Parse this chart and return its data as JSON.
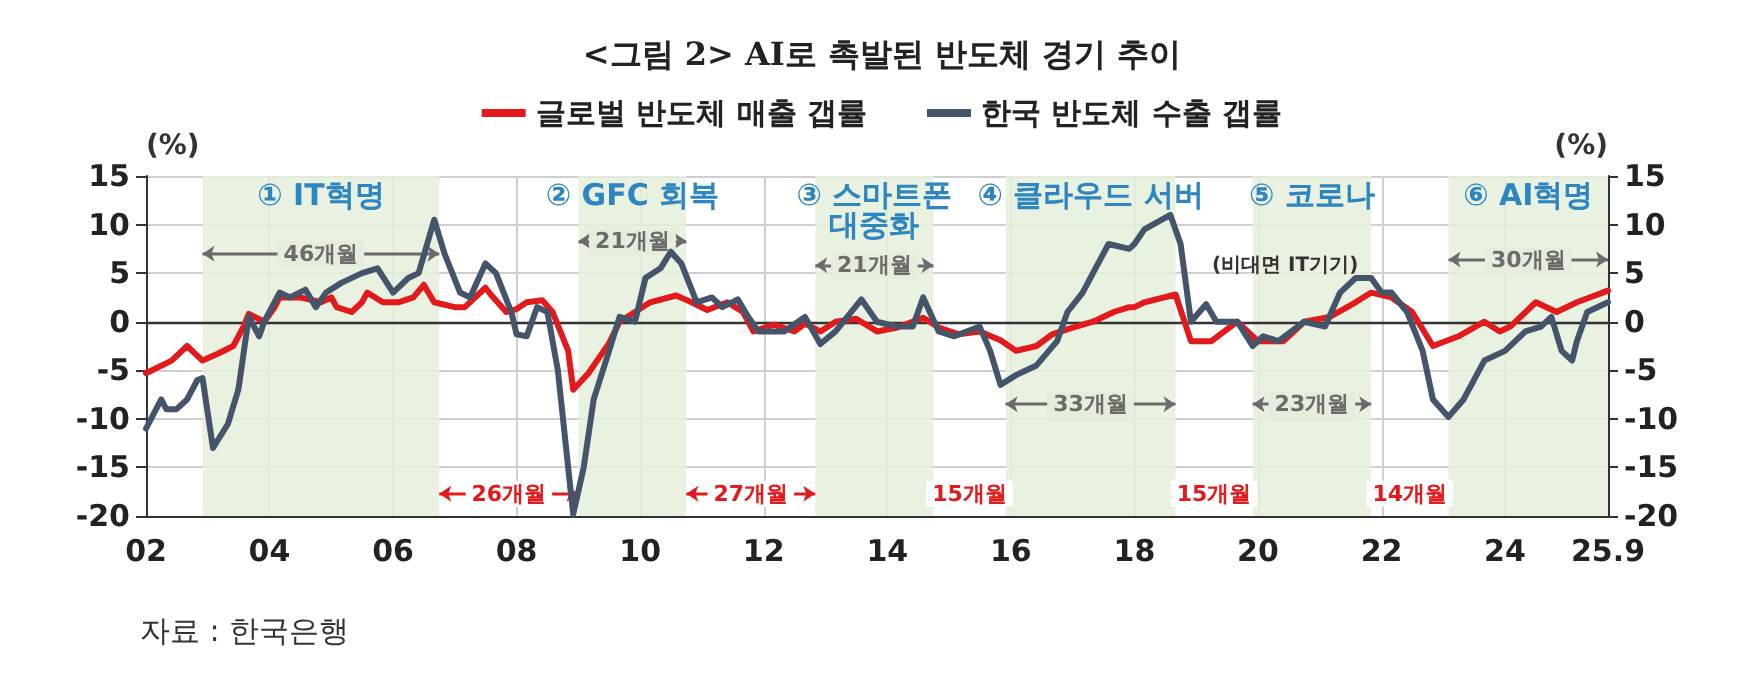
{
  "chart_data": {
    "type": "line",
    "title": "<그림 2> AI로 촉발된 반도체 경기 추이",
    "ylabel": "(%)",
    "y2label": "(%)",
    "series": [
      {
        "name": "글로벌 반도체 매출 갭률",
        "color": "#e31a1c",
        "x": [
          "2002-01",
          "2002-06",
          "2002-09",
          "2002-12",
          "2003-03",
          "2003-06",
          "2003-08",
          "2003-09",
          "2003-12",
          "2004-02",
          "2004-03",
          "2004-07",
          "2004-11",
          "2005-01",
          "2005-02",
          "2005-05",
          "2005-07",
          "2005-08",
          "2005-11",
          "2006-02",
          "2006-05",
          "2006-07",
          "2006-09",
          "2007-01",
          "2007-03",
          "2007-07",
          "2007-08",
          "2007-11",
          "2008-01",
          "2008-03",
          "2008-06",
          "2008-08",
          "2008-11",
          "2008-12",
          "2009-03",
          "2009-07",
          "2009-09",
          "2009-12",
          "2010-03",
          "2010-08",
          "2010-11",
          "2011-02",
          "2011-06",
          "2011-09",
          "2011-11",
          "2012-03",
          "2012-07",
          "2012-09",
          "2012-12",
          "2013-03",
          "2013-07",
          "2013-11",
          "2014-03",
          "2014-08",
          "2014-11",
          "2015-03",
          "2015-07",
          "2015-11",
          "2016-02",
          "2016-06",
          "2016-09",
          "2017-01",
          "2017-05",
          "2017-09",
          "2017-12",
          "2018-01",
          "2018-03",
          "2018-09",
          "2018-12",
          "2019-04",
          "2019-09",
          "2020-01",
          "2020-06",
          "2020-10",
          "2021-03",
          "2021-08",
          "2021-11",
          "2022-03",
          "2022-07",
          "2022-11",
          "2023-04",
          "2023-09",
          "2023-12",
          "2024-02",
          "2024-07",
          "2024-11",
          "2025-03",
          "2025-09"
        ],
        "values": [
          -5.3,
          -4,
          -2.5,
          -4,
          -3.3,
          -2.5,
          -0.5,
          0.8,
          0,
          1.5,
          2.5,
          2.5,
          2,
          2.5,
          1.5,
          1,
          2,
          3,
          2,
          2,
          2.5,
          3.8,
          2,
          1.5,
          1.5,
          3.5,
          2.8,
          1,
          1.3,
          2,
          2.2,
          1,
          -3,
          -7,
          -5.3,
          -2.2,
          0,
          1,
          2,
          2.7,
          2,
          1.2,
          2,
          1,
          -1,
          -0.3,
          -1,
          -0.2,
          -1,
          0,
          0.3,
          -1,
          -0.6,
          0.4,
          -0.6,
          -1.3,
          -1,
          -1.9,
          -3,
          -2.5,
          -1.3,
          -0.6,
          0,
          1,
          1.5,
          1.5,
          2,
          2.8,
          -2,
          -2,
          0,
          -2,
          -2,
          0,
          0.5,
          2,
          3,
          2.5,
          1,
          -2.5,
          -1.5,
          0,
          -1,
          -0.5,
          2,
          1,
          2,
          3.2
        ]
      },
      {
        "name": "한국 반도체 수출 갭률",
        "color": "#44546a",
        "x": [
          "2002-01",
          "2002-04",
          "2002-05",
          "2002-07",
          "2002-09",
          "2002-11",
          "2002-12",
          "2003-02",
          "2003-05",
          "2003-07",
          "2003-09",
          "2003-11",
          "2003-12",
          "2004-03",
          "2004-05",
          "2004-08",
          "2004-10",
          "2004-12",
          "2005-03",
          "2005-07",
          "2005-10",
          "2006-01",
          "2006-04",
          "2006-06",
          "2006-09",
          "2006-11",
          "2007-02",
          "2007-04",
          "2007-07",
          "2007-09",
          "2007-12",
          "2008-01",
          "2008-03",
          "2008-05",
          "2008-07",
          "2008-09",
          "2008-11",
          "2008-12",
          "2009-02",
          "2009-04",
          "2009-07",
          "2009-09",
          "2009-12",
          "2010-02",
          "2010-05",
          "2010-07",
          "2010-09",
          "2010-12",
          "2011-03",
          "2011-05",
          "2011-08",
          "2011-10",
          "2011-12",
          "2012-05",
          "2012-09",
          "2012-12",
          "2013-03",
          "2013-08",
          "2013-11",
          "2014-03",
          "2014-06",
          "2014-08",
          "2014-11",
          "2015-02",
          "2015-07",
          "2015-09",
          "2015-11",
          "2016-02",
          "2016-06",
          "2016-10",
          "2016-12",
          "2017-03",
          "2017-05",
          "2017-08",
          "2017-12",
          "2018-01",
          "2018-03",
          "2018-08",
          "2018-10",
          "2018-12",
          "2019-03",
          "2019-05",
          "2019-09",
          "2019-12",
          "2020-02",
          "2020-05",
          "2020-10",
          "2021-02",
          "2021-05",
          "2021-08",
          "2021-11",
          "2022-01",
          "2022-03",
          "2022-06",
          "2022-09",
          "2022-11",
          "2023-02",
          "2023-05",
          "2023-09",
          "2024-01",
          "2024-05",
          "2024-08",
          "2024-10",
          "2024-12",
          "2025-02",
          "2025-03",
          "2025-05",
          "2025-09"
        ],
        "values": [
          -11,
          -8,
          -9,
          -9,
          -8,
          -6,
          -5.8,
          -13,
          -10.5,
          -7,
          0.5,
          -1.5,
          0,
          3,
          2.5,
          3.3,
          1.5,
          3,
          4,
          5,
          5.5,
          3,
          4.5,
          5,
          10.5,
          7,
          3,
          2.5,
          6,
          5,
          1,
          -1.3,
          -1.5,
          1.5,
          1,
          -5,
          -15,
          -19.8,
          -15,
          -8,
          -3,
          0.5,
          0,
          4.5,
          5.5,
          7.2,
          6,
          2,
          2.5,
          1.5,
          2.3,
          0.5,
          -1,
          -1,
          0.5,
          -2.3,
          -1,
          2.3,
          0,
          -0.5,
          -0.5,
          2.5,
          -1,
          -1.5,
          -0.5,
          -3,
          -6.5,
          -5.5,
          -4.5,
          -2,
          1,
          3,
          5,
          8,
          7.5,
          8,
          9.5,
          11,
          8,
          0,
          1.8,
          0,
          0,
          -2.5,
          -1.5,
          -2,
          0,
          -0.5,
          3,
          4.5,
          4.5,
          3,
          3,
          1,
          -3,
          -8,
          -9.8,
          -8,
          -4,
          -3,
          -1,
          -0.5,
          0.5,
          -3,
          -4,
          -2,
          1,
          2
        ]
      }
    ],
    "xlim": [
      "2002-01",
      "2025-09"
    ],
    "xticks": [
      {
        "value": "2002-01",
        "label": "02"
      },
      {
        "value": "2004-01",
        "label": "04"
      },
      {
        "value": "2006-01",
        "label": "06"
      },
      {
        "value": "2008-01",
        "label": "08"
      },
      {
        "value": "2010-01",
        "label": "10"
      },
      {
        "value": "2012-01",
        "label": "12"
      },
      {
        "value": "2014-01",
        "label": "14"
      },
      {
        "value": "2016-01",
        "label": "16"
      },
      {
        "value": "2018-01",
        "label": "18"
      },
      {
        "value": "2020-01",
        "label": "20"
      },
      {
        "value": "2022-01",
        "label": "22"
      },
      {
        "value": "2024-01",
        "label": "24"
      },
      {
        "value": "2025-09",
        "label": "25.9"
      }
    ],
    "ylim": [
      -20,
      15
    ],
    "yticks": [
      -20,
      -15,
      -10,
      -5,
      0,
      5,
      10,
      15
    ],
    "y2lim": [
      -20,
      15
    ],
    "y2ticks": [
      -20,
      -15,
      -10,
      -5,
      0,
      5,
      10,
      15
    ],
    "grid": true,
    "legend": "top",
    "marker": "none",
    "line_style": "solid",
    "ref_lines": [
      {
        "axis": "y",
        "value": 0,
        "color": "#333333"
      }
    ],
    "bands": [
      {
        "axis": "x",
        "from": "2002-12",
        "to": "2006-10",
        "label": "① IT혁명",
        "color": "#e5eedc"
      },
      {
        "axis": "x",
        "from": "2009-01",
        "to": "2010-10",
        "label": "② GFC 회복",
        "color": "#e5eedc"
      },
      {
        "axis": "x",
        "from": "2012-11",
        "to": "2014-10",
        "label": "③ 스마트폰\n대중화",
        "color": "#e5eedc"
      },
      {
        "axis": "x",
        "from": "2015-12",
        "to": "2018-09",
        "label": "④ 클라우드 서버",
        "color": "#e5eedc"
      },
      {
        "axis": "x",
        "from": "2019-12",
        "to": "2021-11",
        "label": "⑤ 코로나",
        "color": "#e5eedc"
      },
      {
        "axis": "x",
        "from": "2023-02",
        "to": "2025-09",
        "label": "⑥ AI혁명",
        "color": "#e5eedc"
      }
    ],
    "annotations": [
      {
        "text": "46개월",
        "x": "2004-11",
        "y": 7
      },
      {
        "text": "21개월",
        "x": "2009-12",
        "y": 8.3
      },
      {
        "text": "21개월",
        "x": "2013-11",
        "y": 5.8
      },
      {
        "text": "33개월",
        "x": "2017-05",
        "y": -8.5
      },
      {
        "text": "23개월",
        "x": "2020-12",
        "y": -8.5
      },
      {
        "text": "30개월",
        "x": "2024-06",
        "y": 6.4
      },
      {
        "text": "26개월",
        "x": "2007-12",
        "y": -17.7
      },
      {
        "text": "27개월",
        "x": "2011-11",
        "y": -17.7
      },
      {
        "text": "15개월",
        "x": "2015-05",
        "y": -17.7
      },
      {
        "text": "15개월",
        "x": "2019-05",
        "y": -17.7
      },
      {
        "text": "14개월",
        "x": "2022-07",
        "y": -17.7
      },
      "(비대면 IT기기)",
      "자료 : 한국은행"
    ]
  }
}
